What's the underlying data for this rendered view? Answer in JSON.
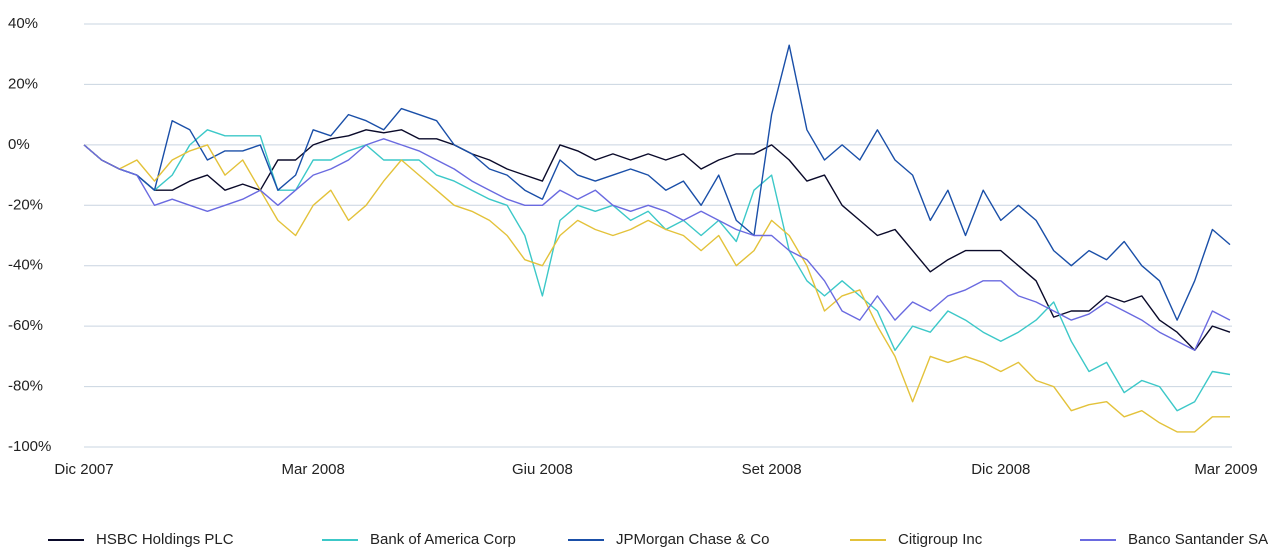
{
  "chart_data": {
    "type": "line",
    "categories": [
      "Dic 2007",
      null,
      null,
      null,
      null,
      null,
      null,
      null,
      null,
      null,
      null,
      null,
      null,
      "Mar 2008",
      null,
      null,
      null,
      null,
      null,
      null,
      null,
      null,
      null,
      null,
      null,
      null,
      "Giu 2008",
      null,
      null,
      null,
      null,
      null,
      null,
      null,
      null,
      null,
      null,
      null,
      null,
      "Set 2008",
      null,
      null,
      null,
      null,
      null,
      null,
      null,
      null,
      null,
      null,
      null,
      null,
      "Dic 2008",
      null,
      null,
      null,
      null,
      null,
      null,
      null,
      null,
      null,
      null,
      null,
      null,
      "Mar 2009"
    ],
    "series": [
      {
        "name": "HSBC Holdings PLC",
        "color": "#0a0a2a",
        "values": [
          0,
          -5,
          -8,
          -10,
          -15,
          -15,
          -12,
          -10,
          -15,
          -13,
          -15,
          -5,
          -5,
          0,
          2,
          3,
          5,
          4,
          5,
          2,
          2,
          0,
          -3,
          -5,
          -8,
          -10,
          -12,
          0,
          -2,
          -5,
          -3,
          -5,
          -3,
          -5,
          -3,
          -8,
          -5,
          -3,
          -3,
          0,
          -5,
          -12,
          -10,
          -20,
          -25,
          -30,
          -28,
          -35,
          -42,
          -38,
          -35,
          -35,
          -35,
          -40,
          -45,
          -57,
          -55,
          -55,
          -50,
          -52,
          -50,
          -58,
          -62,
          -68,
          -60,
          -62
        ]
      },
      {
        "name": "Bank of America Corp",
        "color": "#3cc8c8",
        "values": [
          0,
          -5,
          -8,
          -10,
          -15,
          -10,
          0,
          5,
          3,
          3,
          3,
          -15,
          -15,
          -5,
          -5,
          -2,
          0,
          -5,
          -5,
          -5,
          -10,
          -12,
          -15,
          -18,
          -20,
          -30,
          -50,
          -25,
          -20,
          -22,
          -20,
          -25,
          -22,
          -28,
          -25,
          -30,
          -25,
          -32,
          -15,
          -10,
          -35,
          -45,
          -50,
          -45,
          -50,
          -55,
          -68,
          -60,
          -62,
          -55,
          -58,
          -62,
          -65,
          -62,
          -58,
          -52,
          -65,
          -75,
          -72,
          -82,
          -78,
          -80,
          -88,
          -85,
          -75,
          -76
        ]
      },
      {
        "name": "JPMorgan Chase & Co",
        "color": "#1a4fa8",
        "values": [
          0,
          -5,
          -8,
          -10,
          -15,
          8,
          5,
          -5,
          -2,
          -2,
          0,
          -15,
          -10,
          5,
          3,
          10,
          8,
          5,
          12,
          10,
          8,
          0,
          -3,
          -8,
          -10,
          -15,
          -18,
          -5,
          -10,
          -12,
          -10,
          -8,
          -10,
          -15,
          -12,
          -20,
          -10,
          -25,
          -30,
          10,
          33,
          5,
          -5,
          0,
          -5,
          5,
          -5,
          -10,
          -25,
          -15,
          -30,
          -15,
          -25,
          -20,
          -25,
          -35,
          -40,
          -35,
          -38,
          -32,
          -40,
          -45,
          -58,
          -45,
          -28,
          -33
        ]
      },
      {
        "name": "Citigroup Inc",
        "color": "#e3c23a",
        "values": [
          0,
          -5,
          -8,
          -5,
          -12,
          -5,
          -2,
          0,
          -10,
          -5,
          -15,
          -25,
          -30,
          -20,
          -15,
          -25,
          -20,
          -12,
          -5,
          -10,
          -15,
          -20,
          -22,
          -25,
          -30,
          -38,
          -40,
          -30,
          -25,
          -28,
          -30,
          -28,
          -25,
          -28,
          -30,
          -35,
          -30,
          -40,
          -35,
          -25,
          -30,
          -40,
          -55,
          -50,
          -48,
          -60,
          -70,
          -85,
          -70,
          -72,
          -70,
          -72,
          -75,
          -72,
          -78,
          -80,
          -88,
          -86,
          -85,
          -90,
          -88,
          -92,
          -95,
          -95,
          -90,
          -90
        ]
      },
      {
        "name": "Banco Santander SA",
        "color": "#6a6ae0",
        "values": [
          0,
          -5,
          -8,
          -10,
          -20,
          -18,
          -20,
          -22,
          -20,
          -18,
          -15,
          -20,
          -15,
          -10,
          -8,
          -5,
          0,
          2,
          0,
          -2,
          -5,
          -8,
          -12,
          -15,
          -18,
          -20,
          -20,
          -15,
          -18,
          -15,
          -20,
          -22,
          -20,
          -22,
          -25,
          -22,
          -25,
          -28,
          -30,
          -30,
          -35,
          -38,
          -45,
          -55,
          -58,
          -50,
          -58,
          -52,
          -55,
          -50,
          -48,
          -45,
          -45,
          -50,
          -52,
          -55,
          -58,
          -56,
          -52,
          -55,
          -58,
          -62,
          -65,
          -68,
          -55,
          -58
        ]
      }
    ],
    "ylim": [
      -100,
      40
    ],
    "yticks": [
      {
        "value": 40,
        "label": "40%"
      },
      {
        "value": 20,
        "label": "20%"
      },
      {
        "value": 0,
        "label": "0%"
      },
      {
        "value": -20,
        "label": "-20%"
      },
      {
        "value": -40,
        "label": "-40%"
      },
      {
        "value": -60,
        "label": "-60%"
      },
      {
        "value": -80,
        "label": "-80%"
      },
      {
        "value": -100,
        "label": "-100%"
      }
    ],
    "grid": true
  }
}
